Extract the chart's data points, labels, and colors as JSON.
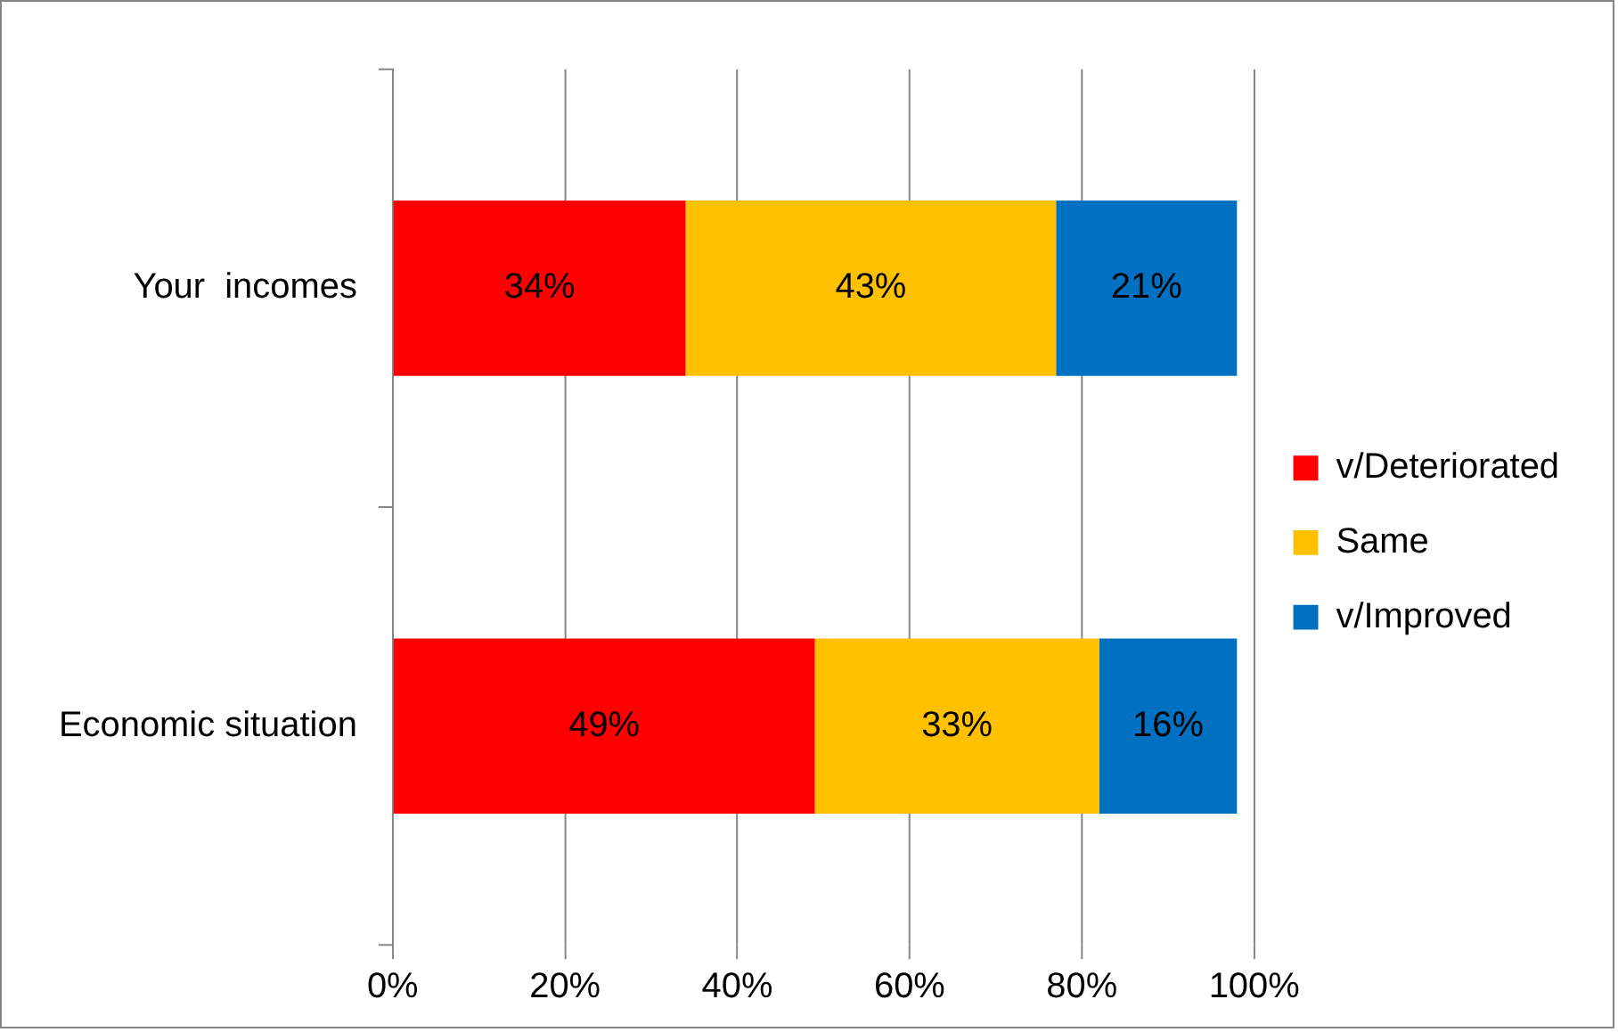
{
  "chart_data": {
    "type": "bar",
    "orientation": "horizontal",
    "stacked": true,
    "categories": [
      "Your  incomes",
      "Economic situation"
    ],
    "series": [
      {
        "name": "v/Deteriorated",
        "color": "#ff0000",
        "values": [
          34,
          49
        ],
        "value_labels": [
          "34%",
          "49%"
        ]
      },
      {
        "name": "Same",
        "color": "#ffc000",
        "values": [
          43,
          33
        ],
        "value_labels": [
          "43%",
          "33%"
        ]
      },
      {
        "name": "v/Improved",
        "color": "#0070c0",
        "values": [
          21,
          16
        ],
        "value_labels": [
          "21%",
          "16%"
        ]
      }
    ],
    "xlim": [
      0,
      100
    ],
    "xticks": [
      {
        "value": 0,
        "label": "0%"
      },
      {
        "value": 20,
        "label": "20%"
      },
      {
        "value": 40,
        "label": "40%"
      },
      {
        "value": 60,
        "label": "60%"
      },
      {
        "value": 80,
        "label": "80%"
      },
      {
        "value": 100,
        "label": "100%"
      }
    ],
    "grid": "x",
    "legend": "right"
  }
}
